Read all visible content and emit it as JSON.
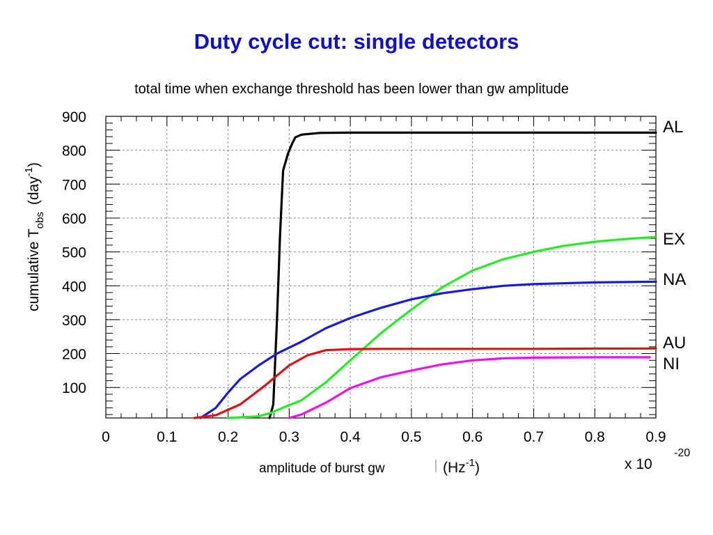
{
  "page": {
    "title": "Duty cycle cut: single detectors",
    "subtitle": "total time when exchange threshold has been lower than gw amplitude"
  },
  "colors": {
    "title": "#1010cc",
    "AL": "#000000",
    "EX": "#22ee22",
    "NA": "#1a1ad8",
    "AU": "#e01010",
    "NI": "#ee10ee"
  },
  "chart_data": {
    "type": "line",
    "title": "",
    "xlabel": "amplitude of burst gw",
    "xlabel_unit_base": "(Hz",
    "xlabel_unit_exp": "-1",
    "xlabel_unit_close": ")",
    "x_multiplier_base": "x 10",
    "x_multiplier_exp": "-20",
    "ylabel_prefix": "cumulative T",
    "ylabel_sub": "obs",
    "ylabel_unit_base": "(day",
    "ylabel_unit_exp": "-1",
    "ylabel_unit_close": ")",
    "xlim": [
      0,
      0.9
    ],
    "ylim": [
      10,
      900
    ],
    "xticks": [
      0,
      0.1,
      0.2,
      0.3,
      0.4,
      0.5,
      0.6,
      0.7,
      0.8,
      0.9
    ],
    "xtick_labels": [
      "0",
      "0.1",
      "0.2",
      "0.3",
      "0.4",
      "0.5",
      "0.6",
      "0.7",
      "0.8",
      "0.9"
    ],
    "yticks": [
      100,
      200,
      300,
      400,
      500,
      600,
      700,
      800,
      900
    ],
    "ytick_labels": [
      "100",
      "200",
      "300",
      "400",
      "500",
      "600",
      "700",
      "800",
      "900"
    ],
    "grid": true,
    "series": [
      {
        "name": "AL",
        "x": [
          0.268,
          0.274,
          0.28,
          0.285,
          0.29,
          0.298,
          0.305,
          0.31,
          0.32,
          0.35,
          0.4,
          0.5,
          0.6,
          0.7,
          0.8,
          0.9
        ],
        "y": [
          10,
          50,
          300,
          550,
          740,
          790,
          820,
          838,
          846,
          851,
          852,
          852,
          852,
          852,
          852,
          852
        ]
      },
      {
        "name": "EX",
        "x": [
          0.2,
          0.25,
          0.27,
          0.3,
          0.32,
          0.36,
          0.4,
          0.45,
          0.5,
          0.55,
          0.6,
          0.65,
          0.7,
          0.75,
          0.8,
          0.85,
          0.9
        ],
        "y": [
          10,
          15,
          25,
          48,
          62,
          115,
          180,
          260,
          330,
          395,
          445,
          478,
          500,
          518,
          530,
          538,
          544
        ]
      },
      {
        "name": "NA",
        "x": [
          0.155,
          0.18,
          0.2,
          0.22,
          0.25,
          0.28,
          0.32,
          0.36,
          0.4,
          0.45,
          0.5,
          0.55,
          0.6,
          0.65,
          0.7,
          0.8,
          0.9
        ],
        "y": [
          10,
          40,
          85,
          125,
          165,
          200,
          235,
          275,
          305,
          335,
          360,
          378,
          390,
          400,
          405,
          410,
          412
        ]
      },
      {
        "name": "AU",
        "x": [
          0.145,
          0.18,
          0.22,
          0.26,
          0.3,
          0.33,
          0.36,
          0.4,
          0.45,
          0.5,
          0.6,
          0.7,
          0.8,
          0.9
        ],
        "y": [
          10,
          18,
          50,
          105,
          165,
          195,
          210,
          213,
          214,
          214,
          214,
          214,
          215,
          215
        ]
      },
      {
        "name": "NI",
        "x": [
          0.3,
          0.32,
          0.36,
          0.4,
          0.45,
          0.5,
          0.55,
          0.6,
          0.65,
          0.7,
          0.8,
          0.89
        ],
        "y": [
          10,
          20,
          55,
          98,
          130,
          150,
          168,
          180,
          186,
          188,
          189,
          189
        ]
      }
    ]
  }
}
